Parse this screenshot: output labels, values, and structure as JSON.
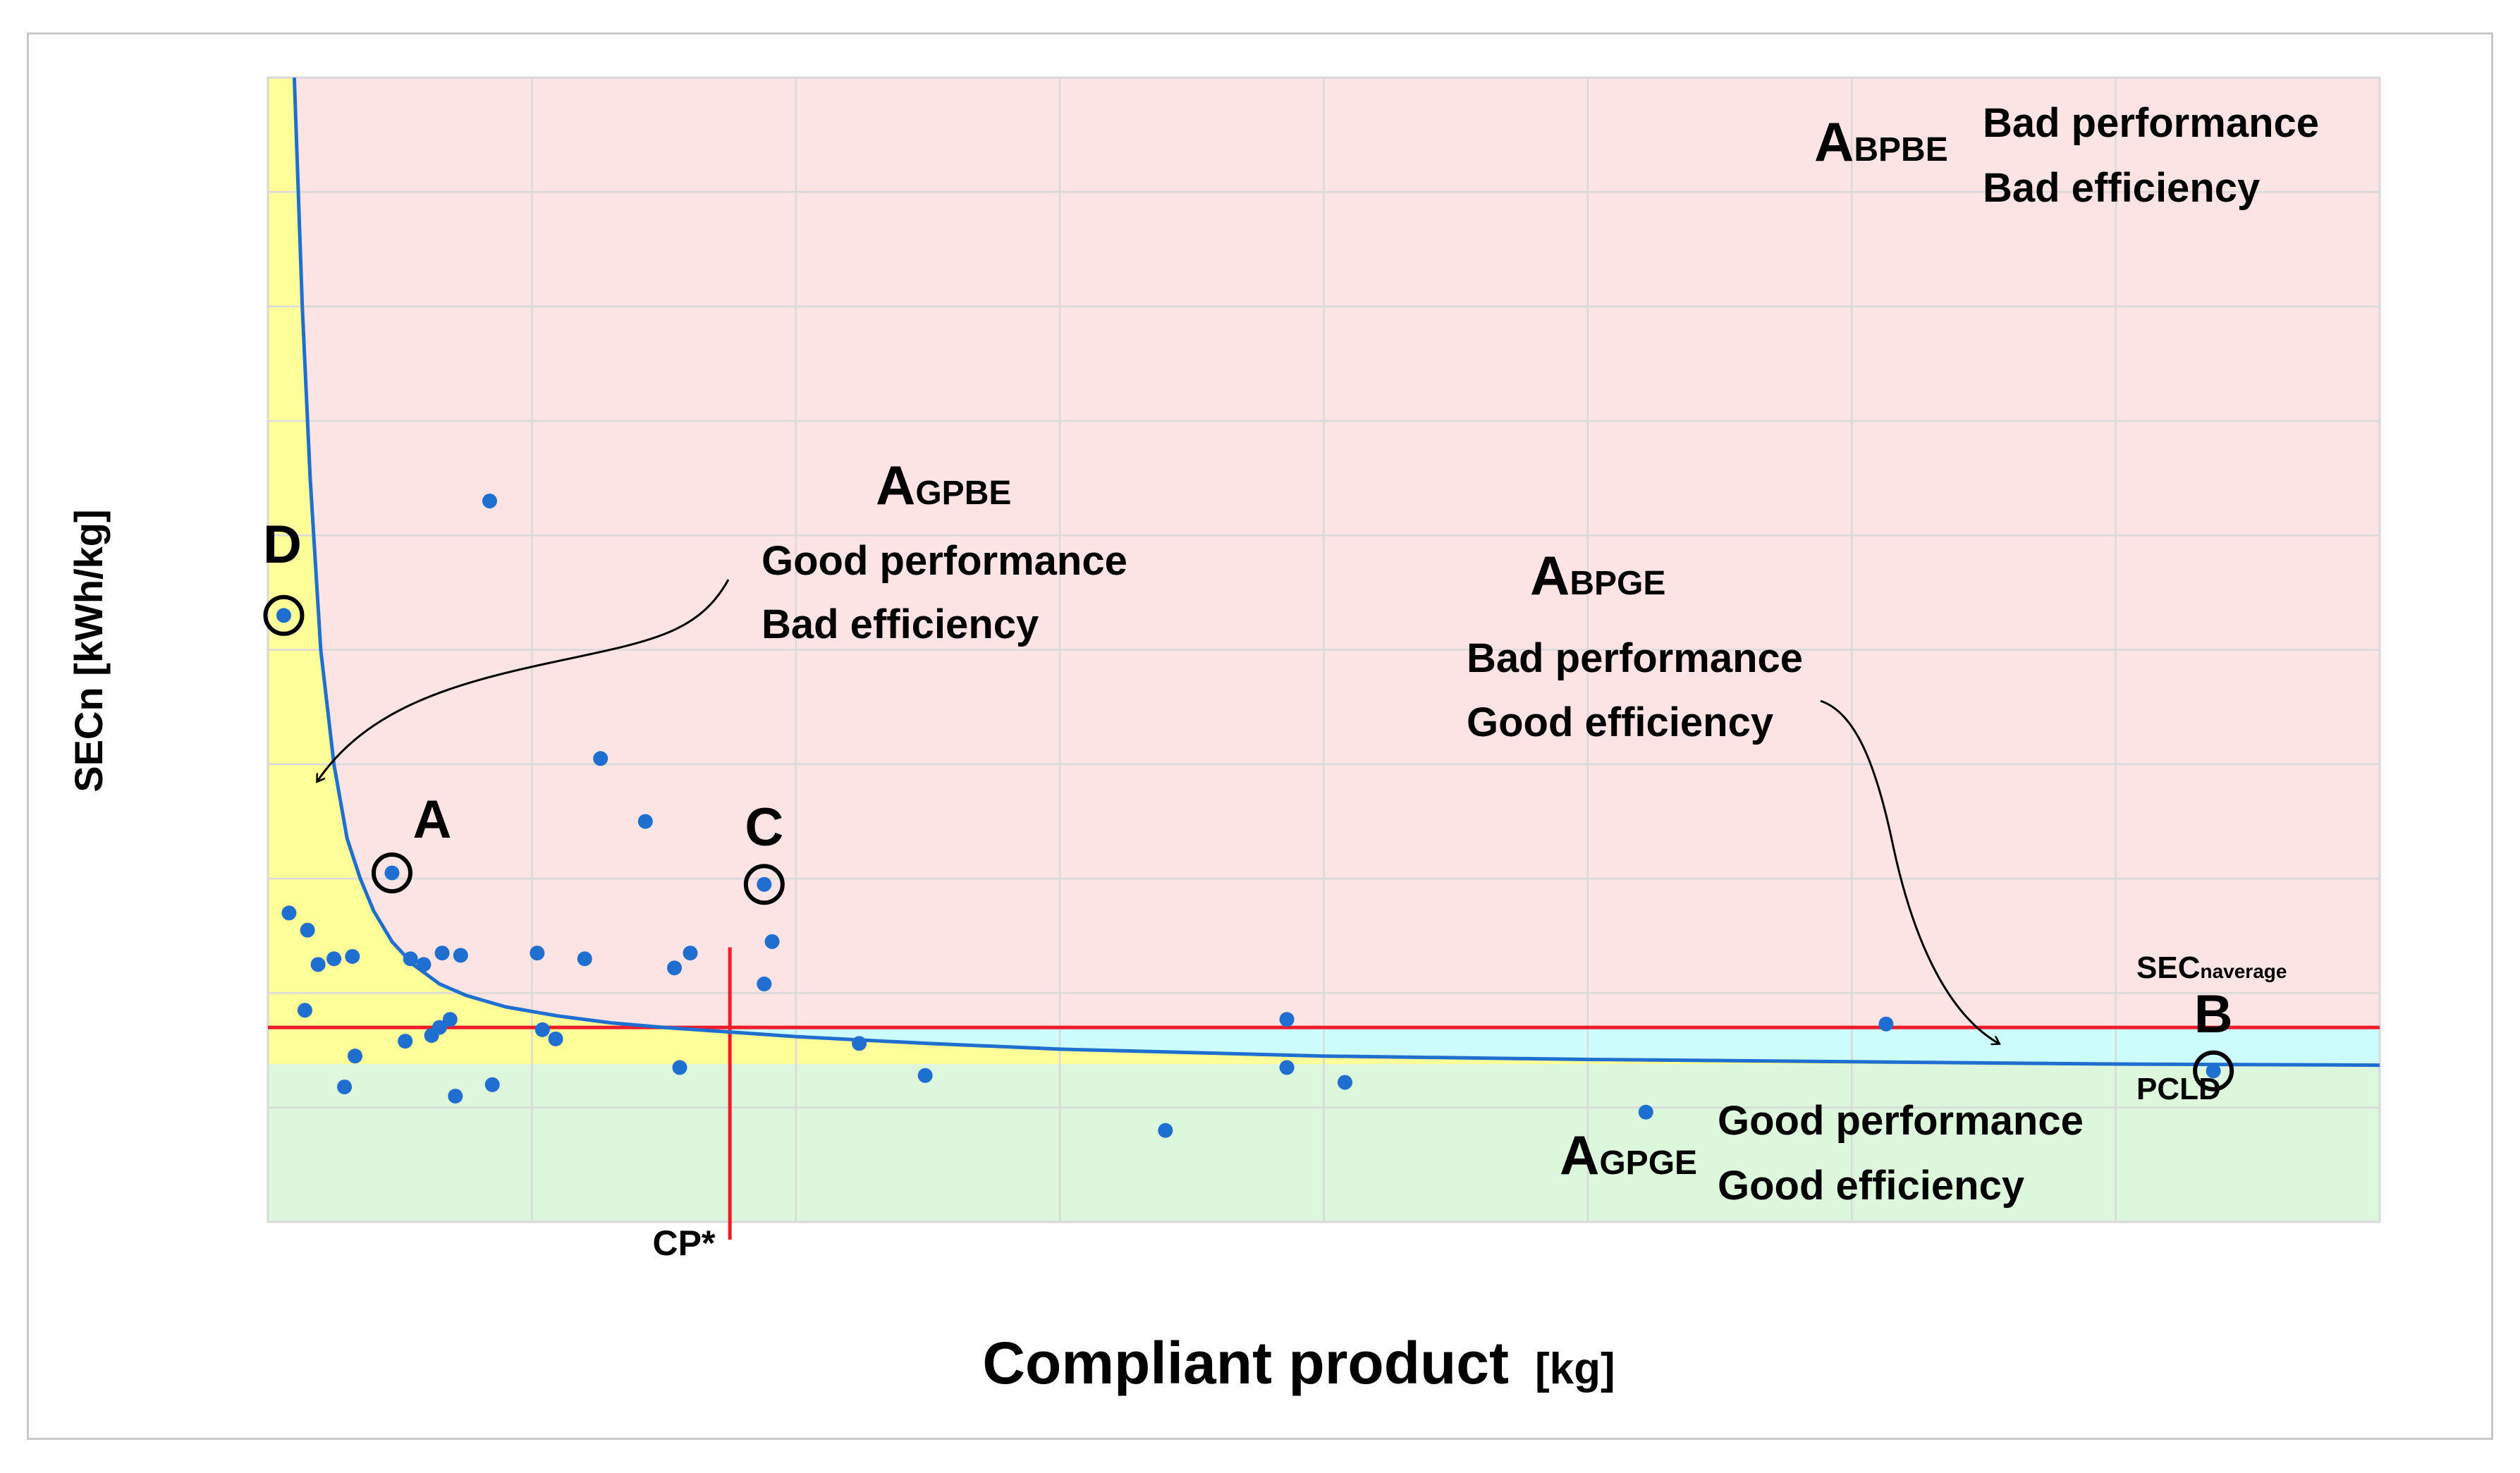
{
  "chart_data": {
    "type": "scatter",
    "title": "",
    "xlabel": "Compliant product",
    "xlabel_unit": "[kg]",
    "ylabel": "SECn [kWh/kg]",
    "xlim": [
      0,
      8
    ],
    "ylim": [
      0,
      10
    ],
    "grid": true,
    "grid_x_step": 1,
    "grid_y_step": 1,
    "sec_average": 1.7,
    "cp_star": 1.75,
    "pcld": 1.38,
    "curve": {
      "name": "PCLD curve",
      "x": [
        0.1,
        0.13,
        0.16,
        0.2,
        0.25,
        0.3,
        0.35,
        0.4,
        0.47,
        0.55,
        0.65,
        0.75,
        0.9,
        1.1,
        1.3,
        1.5,
        1.75,
        2.0,
        2.5,
        3.0,
        4.0,
        5.0,
        6.0,
        7.0,
        8.0
      ],
      "y": [
        10.0,
        8.0,
        6.5,
        5.0,
        4.0,
        3.35,
        3.0,
        2.72,
        2.45,
        2.25,
        2.08,
        1.98,
        1.88,
        1.8,
        1.74,
        1.7,
        1.66,
        1.62,
        1.56,
        1.51,
        1.45,
        1.42,
        1.4,
        1.38,
        1.37
      ]
    },
    "series": [
      {
        "name": "observations",
        "color": "#1f6fd0",
        "points": [
          {
            "x": 0.06,
            "y": 5.3
          },
          {
            "x": 0.47,
            "y": 3.05
          },
          {
            "x": 1.88,
            "y": 2.95
          },
          {
            "x": 7.37,
            "y": 1.32
          },
          {
            "x": 0.84,
            "y": 6.3
          },
          {
            "x": 1.26,
            "y": 4.05
          },
          {
            "x": 0.08,
            "y": 2.7
          },
          {
            "x": 0.15,
            "y": 2.55
          },
          {
            "x": 0.19,
            "y": 2.25
          },
          {
            "x": 0.25,
            "y": 2.3
          },
          {
            "x": 0.32,
            "y": 2.32
          },
          {
            "x": 0.54,
            "y": 2.3
          },
          {
            "x": 0.59,
            "y": 2.25
          },
          {
            "x": 0.66,
            "y": 2.35
          },
          {
            "x": 0.73,
            "y": 2.33
          },
          {
            "x": 0.14,
            "y": 1.85
          },
          {
            "x": 0.65,
            "y": 1.7
          },
          {
            "x": 0.69,
            "y": 1.77
          },
          {
            "x": 0.62,
            "y": 1.63
          },
          {
            "x": 0.52,
            "y": 1.58
          },
          {
            "x": 0.33,
            "y": 1.45
          },
          {
            "x": 0.29,
            "y": 1.18
          },
          {
            "x": 0.71,
            "y": 1.1
          },
          {
            "x": 0.85,
            "y": 1.2
          },
          {
            "x": 1.02,
            "y": 2.35
          },
          {
            "x": 1.2,
            "y": 2.3
          },
          {
            "x": 1.43,
            "y": 3.5
          },
          {
            "x": 1.54,
            "y": 2.22
          },
          {
            "x": 1.6,
            "y": 2.35
          },
          {
            "x": 1.91,
            "y": 2.45
          },
          {
            "x": 1.88,
            "y": 2.08
          },
          {
            "x": 1.04,
            "y": 1.68
          },
          {
            "x": 1.09,
            "y": 1.6
          },
          {
            "x": 1.56,
            "y": 1.35
          },
          {
            "x": 2.24,
            "y": 1.56
          },
          {
            "x": 2.49,
            "y": 1.28
          },
          {
            "x": 3.4,
            "y": 0.8
          },
          {
            "x": 3.86,
            "y": 1.35
          },
          {
            "x": 3.86,
            "y": 1.77
          },
          {
            "x": 4.08,
            "y": 1.22
          },
          {
            "x": 5.22,
            "y": 0.96
          },
          {
            "x": 6.13,
            "y": 1.73
          }
        ]
      }
    ],
    "highlighted_points": [
      {
        "label": "D",
        "x": 0.06,
        "y": 5.3
      },
      {
        "label": "A",
        "x": 0.47,
        "y": 3.05
      },
      {
        "label": "C",
        "x": 1.88,
        "y": 2.95
      },
      {
        "label": "B",
        "x": 7.37,
        "y": 1.32
      }
    ],
    "regions": [
      {
        "id": "AGPBE",
        "name": "Good performance, Bad efficiency",
        "color": "#ffff99"
      },
      {
        "id": "ABPBE",
        "name": "Bad performance, Bad efficiency",
        "color": "#fce4e4"
      },
      {
        "id": "ABPGE",
        "name": "Bad performance, Good efficiency",
        "color": "#ccfcfc"
      },
      {
        "id": "AGPGE",
        "name": "Good performance, Good efficiency",
        "color": "#ddf7dd"
      }
    ],
    "colors": {
      "curve": "#1f6fd0",
      "reference_lines": "#ee1c2a",
      "grid": "#d9d9d9",
      "frame": "#c8c8c8"
    },
    "annotations": {
      "abpbe_main": "A",
      "abpbe_sub": "BPBE",
      "abpbe_line1": "Bad performance",
      "abpbe_line2": "Bad efficiency",
      "agpbe_main": "A",
      "agpbe_sub": "GPBE",
      "agpbe_line1": "Good performance",
      "agpbe_line2": "Bad efficiency",
      "abpge_main": "A",
      "abpge_sub": "BPGE",
      "abpge_line1": "Bad performance",
      "abpge_line2": "Good efficiency",
      "agpge_main": "A",
      "agpge_sub": "GPGE",
      "agpge_line1": "Good performance",
      "agpge_line2": "Good efficiency",
      "sec_main": "SEC",
      "sec_sub": "naverage",
      "pcld": "PCLD",
      "cp_star": "CP*"
    }
  }
}
